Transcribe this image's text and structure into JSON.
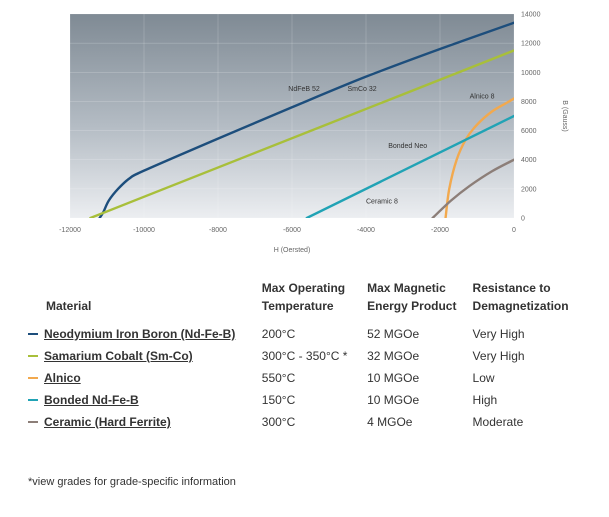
{
  "chart_data": {
    "type": "line",
    "xlabel": "H (Oersted)",
    "ylabel": "B (Gauss)",
    "xlim": [
      -12000,
      0
    ],
    "ylim": [
      0,
      14000
    ],
    "x_ticks": [
      "-12000",
      "-10000",
      "-8000",
      "-6000",
      "-4000",
      "-2000",
      "0"
    ],
    "y_ticks": [
      "0",
      "2000",
      "4000",
      "6000",
      "8000",
      "10000",
      "12000",
      "14000"
    ],
    "grid": true,
    "series": [
      {
        "name": "NdFeB 52",
        "color": "#1d4e7c",
        "points": [
          [
            -11200,
            0
          ],
          [
            -11100,
            400
          ],
          [
            -10950,
            1200
          ],
          [
            -10700,
            2000
          ],
          [
            -10400,
            2700
          ],
          [
            -10000,
            3250
          ],
          [
            -8000,
            5450
          ],
          [
            -6000,
            7600
          ],
          [
            -4000,
            9700
          ],
          [
            -2000,
            11600
          ],
          [
            0,
            13400
          ]
        ]
      },
      {
        "name": "SmCo 32",
        "color": "#a8bf3a",
        "points": [
          [
            -11450,
            0
          ],
          [
            0,
            11500
          ]
        ]
      },
      {
        "name": "Alnico 8",
        "color": "#f2a94e",
        "points": [
          [
            -1850,
            0
          ],
          [
            -1750,
            2000
          ],
          [
            -1550,
            4000
          ],
          [
            -1300,
            5400
          ],
          [
            -1000,
            6400
          ],
          [
            -600,
            7300
          ],
          [
            -200,
            7900
          ],
          [
            0,
            8200
          ]
        ]
      },
      {
        "name": "Bonded Neo",
        "color": "#21a3b5",
        "points": [
          [
            -5600,
            0
          ],
          [
            0,
            7000
          ]
        ]
      },
      {
        "name": "Ceramic 8",
        "color": "#8c7e78",
        "points": [
          [
            -2200,
            0
          ],
          [
            -1700,
            1200
          ],
          [
            -1200,
            2200
          ],
          [
            -600,
            3200
          ],
          [
            0,
            4000
          ]
        ]
      }
    ]
  },
  "table": {
    "headers": {
      "material": "Material",
      "temp_line1": "Max Operating",
      "temp_line2": "Temperature",
      "energy_line1": "Max Magnetic",
      "energy_line2": "Energy Product",
      "resist_line1": "Resistance to",
      "resist_line2": "Demagnetization"
    },
    "rows": [
      {
        "material": "Neodymium Iron Boron (Nd-Fe-B)",
        "color": "#1d4e7c",
        "temp": "200°C",
        "energy": "52 MGOe",
        "resistance": "Very High"
      },
      {
        "material": "Samarium Cobalt (Sm-Co)",
        "color": "#a8bf3a",
        "temp": "300°C - 350°C *",
        "energy": "32 MGOe",
        "resistance": "Very High"
      },
      {
        "material": "Alnico",
        "color": "#f2a94e",
        "temp": "550°C",
        "energy": "10 MGOe",
        "resistance": "Low"
      },
      {
        "material": "Bonded Nd-Fe-B",
        "color": "#21a3b5",
        "temp": "150°C",
        "energy": "10 MGOe",
        "resistance": "High"
      },
      {
        "material": "Ceramic (Hard Ferrite)",
        "color": "#8c7e78",
        "temp": "300°C",
        "energy": "4 MGOe",
        "resistance": "Moderate"
      }
    ]
  },
  "footnote": "*view grades for grade-specific information"
}
